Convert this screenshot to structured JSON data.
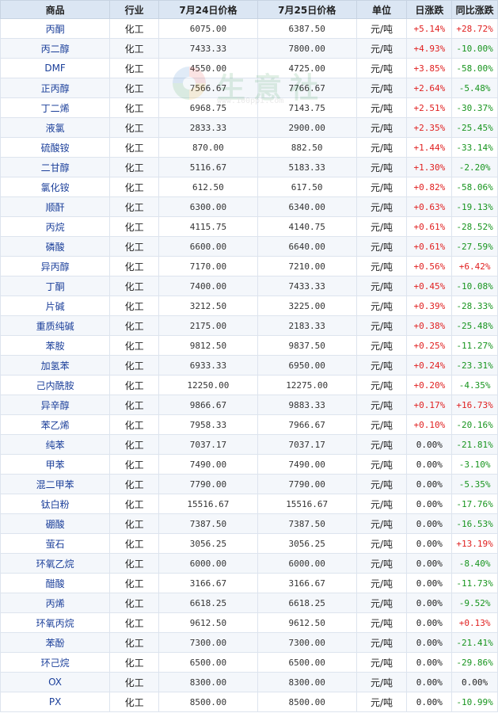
{
  "watermark": {
    "text": "生意社",
    "url": "www.100ppi.com"
  },
  "colors": {
    "up": "#e02020",
    "down": "#18951f",
    "header_bg": "#dbe6f3"
  },
  "headers": [
    "商品",
    "行业",
    "7月24日价格",
    "7月25日价格",
    "单位",
    "日涨跌",
    "同比涨跌"
  ],
  "rows": [
    {
      "name": "丙酮",
      "industry": "化工",
      "p1": "6075.00",
      "p2": "6387.50",
      "unit": "元/吨",
      "day": "+5.14%",
      "yoy": "+28.72%"
    },
    {
      "name": "丙二醇",
      "industry": "化工",
      "p1": "7433.33",
      "p2": "7800.00",
      "unit": "元/吨",
      "day": "+4.93%",
      "yoy": "-10.00%"
    },
    {
      "name": "DMF",
      "industry": "化工",
      "p1": "4550.00",
      "p2": "4725.00",
      "unit": "元/吨",
      "day": "+3.85%",
      "yoy": "-58.00%"
    },
    {
      "name": "正丙醇",
      "industry": "化工",
      "p1": "7566.67",
      "p2": "7766.67",
      "unit": "元/吨",
      "day": "+2.64%",
      "yoy": "-5.48%"
    },
    {
      "name": "丁二烯",
      "industry": "化工",
      "p1": "6968.75",
      "p2": "7143.75",
      "unit": "元/吨",
      "day": "+2.51%",
      "yoy": "-30.37%"
    },
    {
      "name": "液氯",
      "industry": "化工",
      "p1": "2833.33",
      "p2": "2900.00",
      "unit": "元/吨",
      "day": "+2.35%",
      "yoy": "-25.45%"
    },
    {
      "name": "硫酸铵",
      "industry": "化工",
      "p1": "870.00",
      "p2": "882.50",
      "unit": "元/吨",
      "day": "+1.44%",
      "yoy": "-33.14%"
    },
    {
      "name": "二甘醇",
      "industry": "化工",
      "p1": "5116.67",
      "p2": "5183.33",
      "unit": "元/吨",
      "day": "+1.30%",
      "yoy": "-2.20%"
    },
    {
      "name": "氯化铵",
      "industry": "化工",
      "p1": "612.50",
      "p2": "617.50",
      "unit": "元/吨",
      "day": "+0.82%",
      "yoy": "-58.06%"
    },
    {
      "name": "顺酐",
      "industry": "化工",
      "p1": "6300.00",
      "p2": "6340.00",
      "unit": "元/吨",
      "day": "+0.63%",
      "yoy": "-19.13%"
    },
    {
      "name": "丙烷",
      "industry": "化工",
      "p1": "4115.75",
      "p2": "4140.75",
      "unit": "元/吨",
      "day": "+0.61%",
      "yoy": "-28.52%"
    },
    {
      "name": "磷酸",
      "industry": "化工",
      "p1": "6600.00",
      "p2": "6640.00",
      "unit": "元/吨",
      "day": "+0.61%",
      "yoy": "-27.59%"
    },
    {
      "name": "异丙醇",
      "industry": "化工",
      "p1": "7170.00",
      "p2": "7210.00",
      "unit": "元/吨",
      "day": "+0.56%",
      "yoy": "+6.42%"
    },
    {
      "name": "丁酮",
      "industry": "化工",
      "p1": "7400.00",
      "p2": "7433.33",
      "unit": "元/吨",
      "day": "+0.45%",
      "yoy": "-10.08%"
    },
    {
      "name": "片碱",
      "industry": "化工",
      "p1": "3212.50",
      "p2": "3225.00",
      "unit": "元/吨",
      "day": "+0.39%",
      "yoy": "-28.33%"
    },
    {
      "name": "重质纯碱",
      "industry": "化工",
      "p1": "2175.00",
      "p2": "2183.33",
      "unit": "元/吨",
      "day": "+0.38%",
      "yoy": "-25.48%"
    },
    {
      "name": "苯胺",
      "industry": "化工",
      "p1": "9812.50",
      "p2": "9837.50",
      "unit": "元/吨",
      "day": "+0.25%",
      "yoy": "-11.27%"
    },
    {
      "name": "加氢苯",
      "industry": "化工",
      "p1": "6933.33",
      "p2": "6950.00",
      "unit": "元/吨",
      "day": "+0.24%",
      "yoy": "-23.31%"
    },
    {
      "name": "己内酰胺",
      "industry": "化工",
      "p1": "12250.00",
      "p2": "12275.00",
      "unit": "元/吨",
      "day": "+0.20%",
      "yoy": "-4.35%"
    },
    {
      "name": "异辛醇",
      "industry": "化工",
      "p1": "9866.67",
      "p2": "9883.33",
      "unit": "元/吨",
      "day": "+0.17%",
      "yoy": "+16.73%"
    },
    {
      "name": "苯乙烯",
      "industry": "化工",
      "p1": "7958.33",
      "p2": "7966.67",
      "unit": "元/吨",
      "day": "+0.10%",
      "yoy": "-20.16%"
    },
    {
      "name": "纯苯",
      "industry": "化工",
      "p1": "7037.17",
      "p2": "7037.17",
      "unit": "元/吨",
      "day": "0.00%",
      "yoy": "-21.81%"
    },
    {
      "name": "甲苯",
      "industry": "化工",
      "p1": "7490.00",
      "p2": "7490.00",
      "unit": "元/吨",
      "day": "0.00%",
      "yoy": "-3.10%"
    },
    {
      "name": "混二甲苯",
      "industry": "化工",
      "p1": "7790.00",
      "p2": "7790.00",
      "unit": "元/吨",
      "day": "0.00%",
      "yoy": "-5.35%"
    },
    {
      "name": "钛白粉",
      "industry": "化工",
      "p1": "15516.67",
      "p2": "15516.67",
      "unit": "元/吨",
      "day": "0.00%",
      "yoy": "-17.76%"
    },
    {
      "name": "硼酸",
      "industry": "化工",
      "p1": "7387.50",
      "p2": "7387.50",
      "unit": "元/吨",
      "day": "0.00%",
      "yoy": "-16.53%"
    },
    {
      "name": "萤石",
      "industry": "化工",
      "p1": "3056.25",
      "p2": "3056.25",
      "unit": "元/吨",
      "day": "0.00%",
      "yoy": "+13.19%"
    },
    {
      "name": "环氧乙烷",
      "industry": "化工",
      "p1": "6000.00",
      "p2": "6000.00",
      "unit": "元/吨",
      "day": "0.00%",
      "yoy": "-8.40%"
    },
    {
      "name": "醋酸",
      "industry": "化工",
      "p1": "3166.67",
      "p2": "3166.67",
      "unit": "元/吨",
      "day": "0.00%",
      "yoy": "-11.73%"
    },
    {
      "name": "丙烯",
      "industry": "化工",
      "p1": "6618.25",
      "p2": "6618.25",
      "unit": "元/吨",
      "day": "0.00%",
      "yoy": "-9.52%"
    },
    {
      "name": "环氧丙烷",
      "industry": "化工",
      "p1": "9612.50",
      "p2": "9612.50",
      "unit": "元/吨",
      "day": "0.00%",
      "yoy": "+0.13%"
    },
    {
      "name": "苯酚",
      "industry": "化工",
      "p1": "7300.00",
      "p2": "7300.00",
      "unit": "元/吨",
      "day": "0.00%",
      "yoy": "-21.41%"
    },
    {
      "name": "环己烷",
      "industry": "化工",
      "p1": "6500.00",
      "p2": "6500.00",
      "unit": "元/吨",
      "day": "0.00%",
      "yoy": "-29.86%"
    },
    {
      "name": "OX",
      "industry": "化工",
      "p1": "8300.00",
      "p2": "8300.00",
      "unit": "元/吨",
      "day": "0.00%",
      "yoy": "0.00%"
    },
    {
      "name": "PX",
      "industry": "化工",
      "p1": "8500.00",
      "p2": "8500.00",
      "unit": "元/吨",
      "day": "0.00%",
      "yoy": "-10.99%"
    }
  ]
}
